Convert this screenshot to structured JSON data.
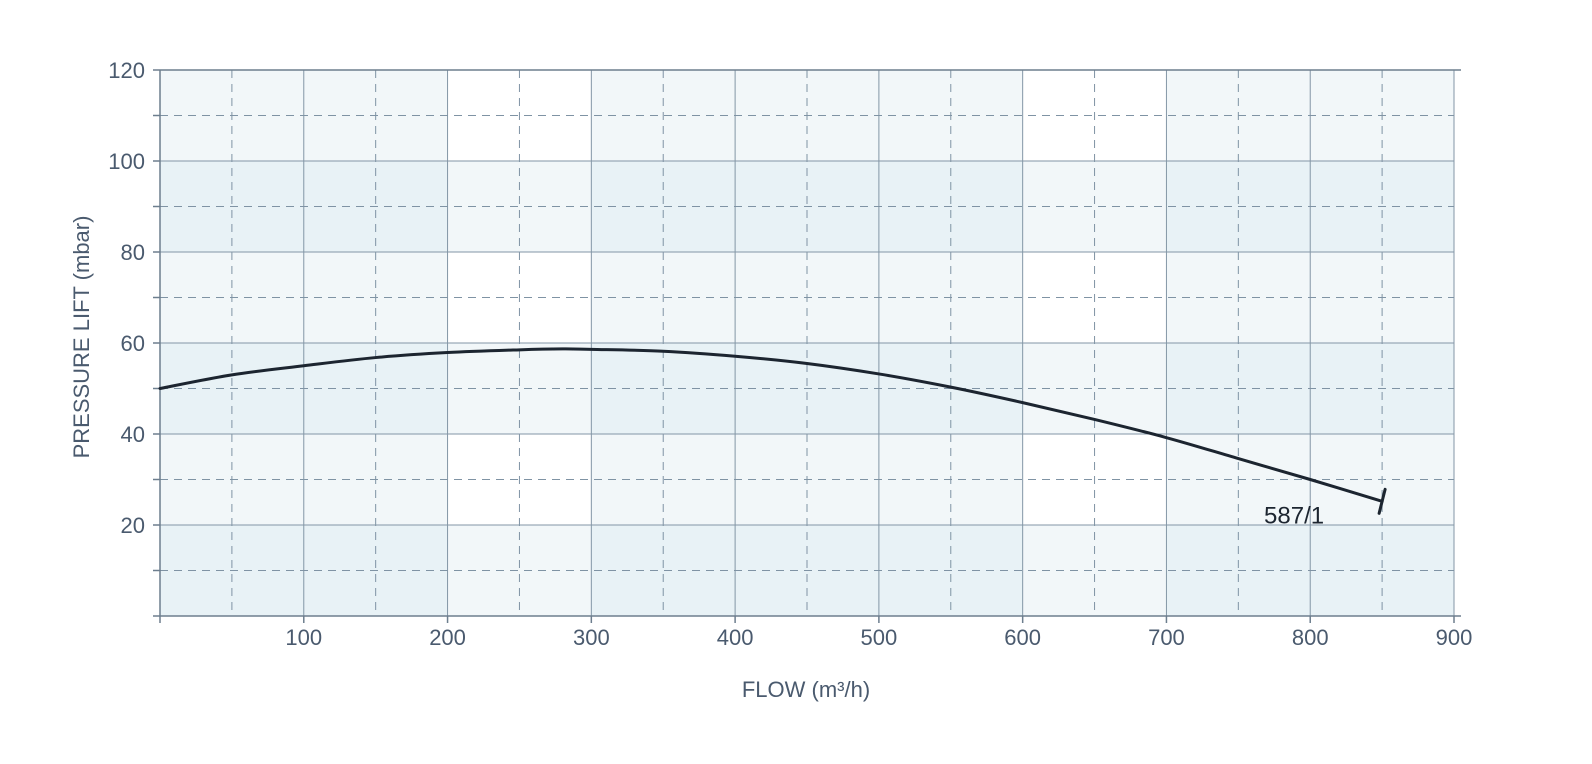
{
  "chart_data": {
    "type": "line",
    "xlabel": "FLOW (m³/h)",
    "ylabel": "PRESSURE LIFT (mbar)",
    "xlim": [
      0,
      900
    ],
    "ylim": [
      0,
      120
    ],
    "xticks": [
      100,
      200,
      300,
      400,
      500,
      600,
      700,
      800,
      900
    ],
    "yticks": [
      20,
      40,
      60,
      80,
      100,
      120
    ],
    "grid": true,
    "series": [
      {
        "name": "587/1",
        "x": [
          0,
          50,
          100,
          150,
          200,
          250,
          280,
          300,
          350,
          400,
          450,
          500,
          550,
          600,
          650,
          700,
          750,
          800,
          850
        ],
        "y": [
          50,
          53,
          55,
          56.8,
          57.9,
          58.5,
          58.7,
          58.6,
          58.2,
          57.1,
          55.5,
          53.2,
          50.3,
          46.9,
          43.2,
          39.2,
          34.6,
          30,
          25.2
        ],
        "color": "#1c2530"
      }
    ]
  }
}
